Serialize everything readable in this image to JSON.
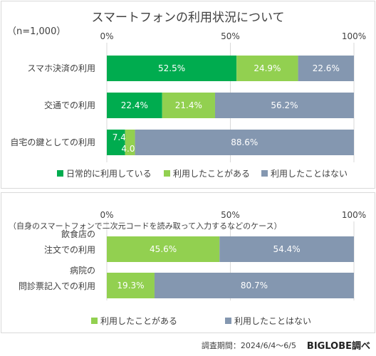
{
  "title": "スマートフォンの利用状況について",
  "sample_note": "（n=1,000）",
  "colors": {
    "daily": "#00ac4f",
    "used": "#92d050",
    "never": "#8497b0",
    "panel_border": "#d9d9d9",
    "grid": "#d9d9d9"
  },
  "chart_data": [
    {
      "type": "bar",
      "stacked": true,
      "orientation": "horizontal",
      "title": "スマートフォンの利用状況について",
      "axis_ticks": [
        "0%",
        "50%",
        "100%"
      ],
      "xlim": [
        0,
        100
      ],
      "categories": [
        "スマホ決済の利用",
        "交通での利用",
        "自宅の鍵としての利用"
      ],
      "series": [
        {
          "name": "日常的に利用している",
          "values": [
            52.5,
            22.4,
            7.4
          ],
          "labels": [
            "52.5%",
            "22.4%",
            "7.4%"
          ]
        },
        {
          "name": "利用したことがある",
          "values": [
            24.9,
            21.4,
            4.0
          ],
          "labels": [
            "24.9%",
            "21.4%",
            "4.0%"
          ]
        },
        {
          "name": "利用したことはない",
          "values": [
            22.6,
            56.2,
            88.6
          ],
          "labels": [
            "22.6%",
            "56.2%",
            "88.6%"
          ]
        }
      ],
      "legend_position": "bottom"
    },
    {
      "type": "bar",
      "stacked": true,
      "orientation": "horizontal",
      "subtitle": "（自身のスマートフォンで二次元コードを読み取って入力するなどのケース）",
      "axis_ticks": [
        "0%",
        "50%",
        "100%"
      ],
      "xlim": [
        0,
        100
      ],
      "categories": [
        [
          "飲食店の",
          "注文での利用"
        ],
        [
          "病院の",
          "問診票記入での利用"
        ]
      ],
      "series": [
        {
          "name": "利用したことがある",
          "values": [
            45.6,
            19.3
          ],
          "labels": [
            "45.6%",
            "19.3%"
          ]
        },
        {
          "name": "利用したことはない",
          "values": [
            54.4,
            80.7
          ],
          "labels": [
            "54.4%",
            "80.7%"
          ]
        }
      ],
      "legend_position": "bottom"
    }
  ],
  "footer": {
    "period": "調査期間：2024/6/4～6/5",
    "brand": "BIGLOBE調べ"
  }
}
